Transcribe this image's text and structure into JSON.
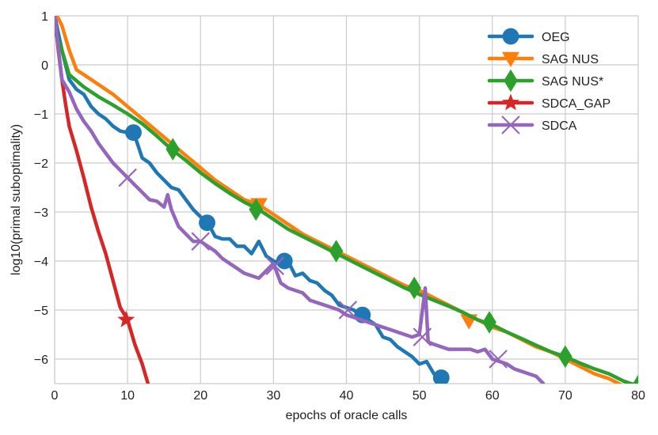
{
  "chart_data": {
    "type": "line",
    "title": "",
    "xlabel": "epochs of oracle calls",
    "ylabel": "log10(primal suboptimality)",
    "xlim": [
      0,
      80
    ],
    "ylim": [
      -6.5,
      1
    ],
    "xticks": [
      "0",
      "10",
      "20",
      "30",
      "40",
      "50",
      "60",
      "70",
      "80"
    ],
    "yticks": [
      "1",
      "0",
      "−1",
      "−2",
      "−3",
      "−4",
      "−5",
      "−6"
    ],
    "grid": true,
    "legend_position": "top-right",
    "series": [
      {
        "name": "OEG",
        "color": "#1f77b4",
        "marker": "circle",
        "x": [
          0,
          1,
          2,
          3,
          4,
          5,
          6,
          7,
          8,
          9,
          10,
          11,
          12,
          13,
          14,
          15,
          16,
          17,
          18,
          19,
          20,
          21,
          22,
          23,
          24,
          25,
          26,
          27,
          28,
          29,
          30,
          31,
          32,
          33,
          34,
          35,
          36,
          37,
          38,
          39,
          40,
          41,
          42,
          43,
          44,
          45,
          46,
          47,
          48,
          49,
          50,
          51,
          52,
          53
        ],
        "y": [
          1.0,
          0.3,
          -0.3,
          -0.5,
          -0.6,
          -0.85,
          -1.0,
          -1.1,
          -1.25,
          -1.35,
          -1.38,
          -1.45,
          -1.9,
          -2.0,
          -2.2,
          -2.35,
          -2.5,
          -2.55,
          -2.75,
          -2.95,
          -3.1,
          -3.22,
          -3.5,
          -3.55,
          -3.55,
          -3.7,
          -3.7,
          -3.85,
          -3.6,
          -3.9,
          -4.0,
          -4.05,
          -4.0,
          -4.3,
          -4.25,
          -4.4,
          -4.45,
          -4.6,
          -4.7,
          -4.9,
          -4.95,
          -5.0,
          -5.1,
          -5.2,
          -5.3,
          -5.55,
          -5.6,
          -5.75,
          -5.85,
          -5.95,
          -6.1,
          -6.05,
          -6.3,
          -6.38
        ],
        "marker_x": [
          10.8,
          20.9,
          31.5,
          42.2,
          53.0
        ],
        "marker_y": [
          -1.38,
          -3.22,
          -4.0,
          -5.1,
          -6.38
        ]
      },
      {
        "name": "SAG NUS",
        "color": "#ff7f0e",
        "marker": "triangle-down",
        "x": [
          0,
          1,
          2,
          3,
          4,
          6,
          8,
          10,
          12,
          14,
          16,
          18,
          20,
          22,
          24,
          26,
          28,
          30,
          32,
          34,
          36,
          38,
          40,
          42,
          44,
          46,
          48,
          50,
          52,
          54,
          56,
          58,
          60,
          62,
          64,
          66,
          68,
          70,
          72,
          74,
          76,
          78,
          80
        ],
        "y": [
          1.1,
          0.8,
          0.3,
          -0.1,
          -0.2,
          -0.4,
          -0.6,
          -0.85,
          -1.1,
          -1.35,
          -1.6,
          -1.85,
          -2.1,
          -2.35,
          -2.55,
          -2.75,
          -2.85,
          -3.05,
          -3.25,
          -3.45,
          -3.6,
          -3.75,
          -3.9,
          -4.05,
          -4.2,
          -4.35,
          -4.5,
          -4.6,
          -4.75,
          -4.9,
          -5.05,
          -5.2,
          -5.35,
          -5.45,
          -5.6,
          -5.75,
          -5.85,
          -6.0,
          -6.15,
          -6.3,
          -6.4,
          -6.55,
          -6.7
        ],
        "marker_x": [
          28.0,
          56.8
        ],
        "marker_y": [
          -2.85,
          -5.22
        ]
      },
      {
        "name": "SAG NUS*",
        "color": "#2ca02c",
        "marker": "diamond",
        "x": [
          0,
          1,
          2,
          4,
          6,
          8,
          10,
          12,
          14,
          16,
          18,
          20,
          22,
          24,
          26,
          28,
          30,
          32,
          34,
          36,
          38,
          40,
          42,
          44,
          46,
          48,
          50,
          52,
          54,
          56,
          58,
          60,
          62,
          64,
          66,
          68,
          70,
          72,
          74,
          76,
          78,
          80
        ],
        "y": [
          0.7,
          0.3,
          -0.2,
          -0.45,
          -0.65,
          -0.82,
          -1.0,
          -1.2,
          -1.45,
          -1.72,
          -1.95,
          -2.2,
          -2.42,
          -2.62,
          -2.8,
          -2.95,
          -3.15,
          -3.35,
          -3.5,
          -3.65,
          -3.8,
          -3.95,
          -4.1,
          -4.25,
          -4.4,
          -4.55,
          -4.68,
          -4.8,
          -4.92,
          -5.05,
          -5.2,
          -5.3,
          -5.45,
          -5.58,
          -5.72,
          -5.85,
          -5.95,
          -6.08,
          -6.2,
          -6.3,
          -6.45,
          -6.55
        ],
        "marker_x": [
          16.2,
          27.6,
          38.6,
          49.3,
          59.6,
          70.0,
          80.0
        ],
        "marker_y": [
          -1.72,
          -2.95,
          -3.8,
          -4.55,
          -5.25,
          -5.95,
          -6.55
        ]
      },
      {
        "name": "SDCA_GAP",
        "color": "#d62728",
        "marker": "star",
        "x": [
          0,
          0.5,
          1,
          1.5,
          2,
          3,
          4,
          5,
          6,
          7,
          8,
          9,
          10,
          11,
          12,
          12.8
        ],
        "y": [
          1.0,
          0.3,
          -0.3,
          -0.8,
          -1.25,
          -1.75,
          -2.3,
          -2.9,
          -3.4,
          -3.85,
          -4.4,
          -4.95,
          -5.2,
          -5.7,
          -6.1,
          -6.5
        ],
        "marker_x": [
          9.8
        ],
        "marker_y": [
          -5.2
        ]
      },
      {
        "name": "SDCA",
        "color": "#9467bd",
        "marker": "x",
        "x": [
          0,
          1,
          2,
          3,
          4,
          5,
          6,
          7,
          8,
          9,
          10,
          11,
          12,
          13,
          14,
          15,
          15.5,
          16,
          17,
          18,
          19,
          20,
          21,
          22,
          23,
          24,
          25,
          26,
          27,
          28,
          29,
          30,
          31,
          32,
          33,
          34,
          35,
          36,
          37,
          38,
          39,
          40,
          41,
          42,
          43,
          44,
          45,
          46,
          47,
          48,
          49,
          50,
          50.8,
          51.2,
          52,
          53,
          54,
          55,
          56,
          57,
          58,
          59,
          60,
          61,
          62,
          63,
          64,
          65,
          66,
          67
        ],
        "y": [
          1.0,
          -0.3,
          -0.55,
          -0.9,
          -1.15,
          -1.35,
          -1.6,
          -1.8,
          -2.0,
          -2.15,
          -2.3,
          -2.45,
          -2.6,
          -2.75,
          -2.78,
          -2.9,
          -2.65,
          -2.95,
          -3.3,
          -3.45,
          -3.6,
          -3.6,
          -3.7,
          -3.8,
          -3.95,
          -4.05,
          -4.15,
          -4.25,
          -4.3,
          -4.35,
          -4.2,
          -4.05,
          -4.45,
          -4.55,
          -4.6,
          -4.65,
          -4.8,
          -4.85,
          -4.9,
          -4.95,
          -5.0,
          -5.1,
          -5.15,
          -5.2,
          -5.25,
          -5.3,
          -5.35,
          -5.4,
          -5.45,
          -5.5,
          -5.55,
          -5.5,
          -4.55,
          -5.65,
          -5.7,
          -5.75,
          -5.8,
          -5.8,
          -5.8,
          -5.8,
          -5.85,
          -5.8,
          -6.0,
          -6.05,
          -6.1,
          -6.2,
          -6.25,
          -6.3,
          -6.35,
          -6.5
        ],
        "marker_x": [
          10.0,
          20.0,
          30.2,
          40.2,
          50.4,
          60.8
        ],
        "marker_y": [
          -2.3,
          -3.6,
          -4.1,
          -5.0,
          -5.55,
          -6.0
        ]
      }
    ]
  }
}
